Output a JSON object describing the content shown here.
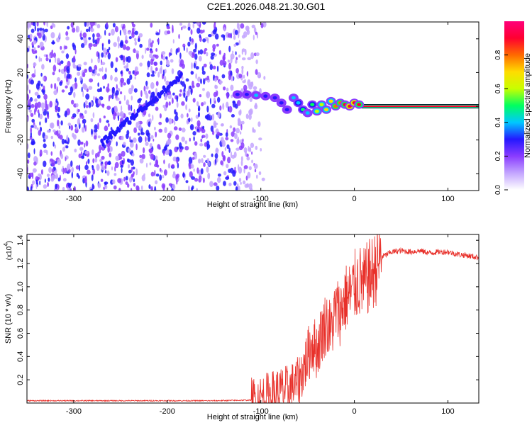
{
  "title": "C2E1.2026.048.21.30.G01",
  "colors": {
    "snr_line": "#e8302a",
    "noise": "#7a3cff",
    "frame": "#000000"
  },
  "chart_data": [
    {
      "type": "heatmap",
      "xlabel": "Height of straight line (km)",
      "ylabel": "Frequency (Hz)",
      "xlim": [
        -350,
        133
      ],
      "ylim": [
        -50,
        50
      ],
      "x_ticks": [
        -300,
        -200,
        -100,
        0,
        100
      ],
      "y_ticks": [
        -40,
        -20,
        0,
        20,
        40
      ],
      "colorbar": {
        "label": "Normalized spectral amplitude",
        "range": [
          0,
          1
        ],
        "ticks": [
          "0.0",
          "0.2",
          "0.4",
          "0.6",
          "0.8"
        ],
        "tick_values": [
          0,
          0.2,
          0.4,
          0.6,
          0.8
        ],
        "colormap": [
          "#ffffff",
          "#c3a5ff",
          "#8a3cff",
          "#2418ff",
          "#00c8ff",
          "#00ff60",
          "#c8ff00",
          "#ffdc00",
          "#ff6a00",
          "#ff0030",
          "#ff007a"
        ]
      },
      "ridge": {
        "x": [
          -125,
          -115,
          -105,
          -95,
          -85,
          -78,
          -72,
          -65,
          -60,
          -55,
          -50,
          -45,
          -40,
          -35,
          -30,
          -25,
          -20,
          -15,
          -10,
          -5,
          0,
          5
        ],
        "y": [
          7,
          7,
          6.5,
          6,
          5,
          2,
          -2,
          5,
          2,
          -2,
          -4,
          1,
          -3,
          1,
          -2,
          3,
          0,
          2,
          1,
          0,
          2,
          1
        ],
        "amplitude": [
          0.3,
          0.35,
          0.4,
          0.35,
          0.35,
          0.3,
          0.3,
          0.4,
          0.45,
          0.5,
          0.4,
          0.55,
          0.6,
          0.65,
          0.7,
          0.75,
          0.8,
          0.85,
          0.9,
          0.92,
          0.95,
          0.9
        ]
      },
      "constant_band": {
        "x": [
          5,
          133
        ],
        "y": 0,
        "amplitude": 0.98
      },
      "noise_region_x": [
        -350,
        -95
      ]
    },
    {
      "type": "line",
      "xlabel": "Height of straight line (km)",
      "ylabel": "SNR (10 * v/v)",
      "y_multiplier": "(x10",
      "y_multiplier_exp": "4",
      "xlim": [
        -350,
        133
      ],
      "ylim": [
        0,
        1.45
      ],
      "x_ticks": [
        -300,
        -200,
        -100,
        0,
        100
      ],
      "y_ticks": [
        0.2,
        0.4,
        0.6,
        0.8,
        1.0,
        1.2,
        1.4
      ],
      "series": [
        {
          "x": [
            -350,
            -300,
            -250,
            -200,
            -150,
            -110,
            -100,
            -90,
            -80,
            -70,
            -60,
            -55,
            -50,
            -45,
            -40,
            -35,
            -30,
            -25,
            -20,
            -15,
            -10,
            -5,
            0,
            5,
            10,
            15,
            20,
            25,
            30,
            40,
            50,
            60,
            70,
            80,
            90,
            100,
            110,
            120,
            133
          ],
          "y": [
            0.02,
            0.02,
            0.02,
            0.02,
            0.02,
            0.025,
            0.04,
            0.07,
            0.1,
            0.12,
            0.18,
            0.28,
            0.4,
            0.52,
            0.45,
            0.6,
            0.7,
            0.62,
            0.8,
            0.78,
            0.9,
            0.92,
            1.0,
            1.05,
            1.02,
            1.08,
            1.12,
            1.2,
            1.26,
            1.3,
            1.31,
            1.3,
            1.31,
            1.29,
            1.3,
            1.3,
            1.28,
            1.27,
            1.25
          ]
        }
      ]
    }
  ]
}
